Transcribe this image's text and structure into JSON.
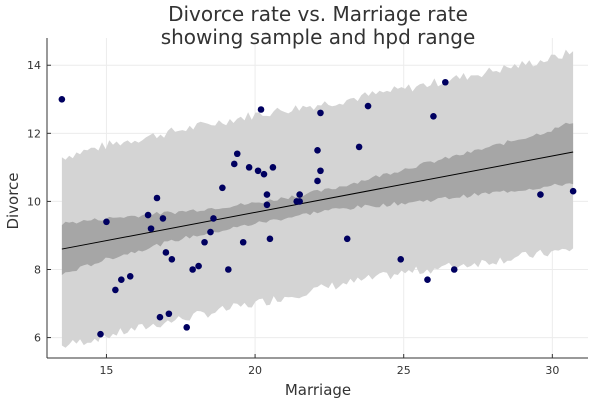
{
  "chart_data": {
    "type": "scatter",
    "title_line1": "Divorce rate vs. Marriage rate",
    "title_line2": "showing sample and hpd range",
    "xlabel": "Marriage",
    "ylabel": "Divorce",
    "xlim": [
      13.0,
      31.2
    ],
    "ylim": [
      5.4,
      14.8
    ],
    "xticks": [
      15,
      20,
      25,
      30
    ],
    "yticks": [
      6,
      8,
      10,
      12,
      14
    ],
    "grid": true,
    "colors": {
      "points": "#000060",
      "line": "#000000",
      "hpd_band": "#a6a6a6",
      "sample_band": "#d4d4d4"
    },
    "points": [
      [
        13.5,
        13.0
      ],
      [
        14.8,
        6.1
      ],
      [
        15.0,
        9.4
      ],
      [
        15.3,
        7.4
      ],
      [
        15.5,
        7.7
      ],
      [
        15.8,
        7.8
      ],
      [
        16.4,
        9.6
      ],
      [
        16.5,
        9.2
      ],
      [
        16.7,
        10.1
      ],
      [
        16.8,
        6.6
      ],
      [
        16.9,
        9.5
      ],
      [
        17.0,
        8.5
      ],
      [
        17.1,
        6.7
      ],
      [
        17.2,
        8.3
      ],
      [
        17.7,
        6.3
      ],
      [
        17.9,
        8.0
      ],
      [
        18.1,
        8.1
      ],
      [
        18.3,
        8.8
      ],
      [
        18.5,
        9.1
      ],
      [
        18.6,
        9.5
      ],
      [
        18.9,
        10.4
      ],
      [
        19.1,
        8.0
      ],
      [
        19.3,
        11.1
      ],
      [
        19.4,
        11.4
      ],
      [
        19.6,
        8.8
      ],
      [
        19.8,
        11.0
      ],
      [
        20.1,
        10.9
      ],
      [
        20.2,
        12.7
      ],
      [
        20.3,
        10.8
      ],
      [
        20.4,
        10.2
      ],
      [
        20.4,
        9.9
      ],
      [
        20.5,
        8.9
      ],
      [
        20.6,
        11.0
      ],
      [
        21.4,
        10.0
      ],
      [
        21.5,
        10.2
      ],
      [
        21.5,
        10.0
      ],
      [
        22.1,
        11.5
      ],
      [
        22.1,
        10.6
      ],
      [
        22.2,
        10.9
      ],
      [
        22.2,
        12.6
      ],
      [
        23.1,
        8.9
      ],
      [
        23.5,
        11.6
      ],
      [
        23.8,
        12.8
      ],
      [
        24.9,
        8.3
      ],
      [
        25.8,
        7.7
      ],
      [
        26.0,
        12.5
      ],
      [
        26.4,
        13.5
      ],
      [
        26.7,
        8.0
      ],
      [
        29.6,
        10.2
      ],
      [
        30.7,
        10.3
      ]
    ],
    "regression": {
      "x": [
        13.5,
        30.7
      ],
      "y": [
        8.6,
        11.45
      ]
    },
    "hpd_band": {
      "x": [
        13.5,
        15,
        17.5,
        20,
        22.5,
        25,
        27.5,
        30,
        30.7
      ],
      "lower": [
        7.85,
        8.3,
        8.9,
        9.35,
        9.75,
        9.95,
        10.2,
        10.45,
        10.55
      ],
      "upper": [
        9.35,
        9.5,
        9.7,
        9.95,
        10.35,
        10.95,
        11.5,
        12.1,
        12.35
      ]
    },
    "sample_band": {
      "x": [
        13.5,
        15,
        17.5,
        20,
        22.5,
        25,
        27.5,
        30,
        30.7
      ],
      "lower": [
        5.75,
        6.05,
        6.55,
        7.0,
        7.5,
        7.9,
        8.2,
        8.5,
        8.6
      ],
      "upper": [
        11.3,
        11.65,
        12.1,
        12.55,
        12.9,
        13.3,
        13.75,
        14.2,
        14.4
      ]
    }
  }
}
